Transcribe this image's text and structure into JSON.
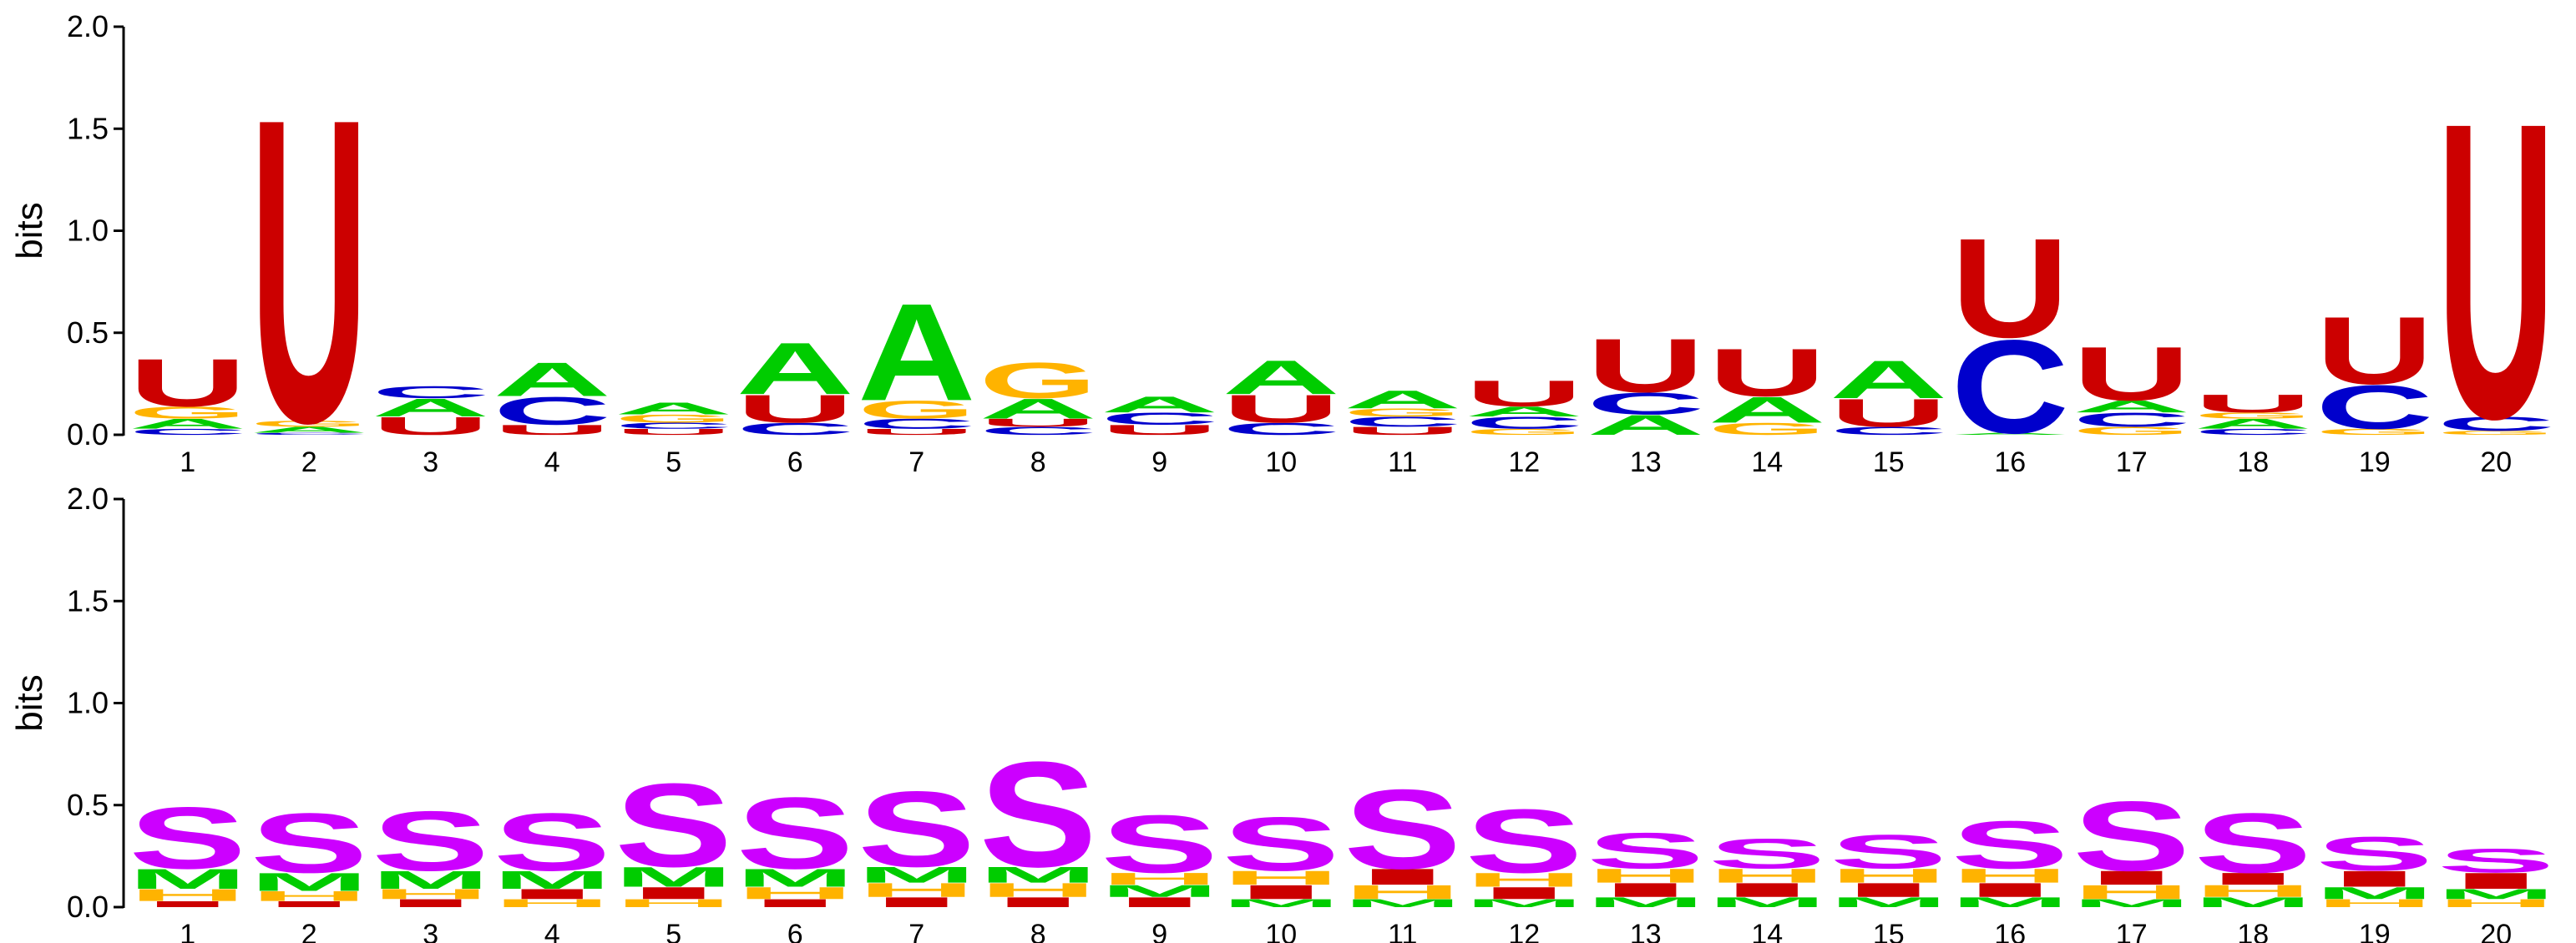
{
  "chart_data": [
    {
      "type": "sequence_logo",
      "ylabel": "bits",
      "ylim": [
        0,
        2
      ],
      "yticks": [
        "0.0",
        "0.5",
        "1.0",
        "1.5",
        "2.0"
      ],
      "positions": [
        "1",
        "2",
        "3",
        "4",
        "5",
        "6",
        "7",
        "8",
        "9",
        "10",
        "11",
        "12",
        "13",
        "14",
        "15",
        "16",
        "17",
        "18",
        "19",
        "20"
      ],
      "colors": {
        "A": "#00cc00",
        "C": "#0000cc",
        "G": "#ffb300",
        "U": "#cc0000"
      },
      "stacks": [
        [
          {
            "l": "C",
            "h": 0.03
          },
          {
            "l": "A",
            "h": 0.05
          },
          {
            "l": "G",
            "h": 0.06
          },
          {
            "l": "U",
            "h": 0.24
          }
        ],
        [
          {
            "l": "C",
            "h": 0.01
          },
          {
            "l": "A",
            "h": 0.03
          },
          {
            "l": "G",
            "h": 0.03
          },
          {
            "l": "U",
            "h": 1.53
          }
        ],
        [
          {
            "l": "U",
            "h": 0.09
          },
          {
            "l": "A",
            "h": 0.09
          },
          {
            "l": "C",
            "h": 0.06
          }
        ],
        [
          {
            "l": "U",
            "h": 0.05
          },
          {
            "l": "C",
            "h": 0.14
          },
          {
            "l": "A",
            "h": 0.17
          }
        ],
        [
          {
            "l": "U",
            "h": 0.03
          },
          {
            "l": "C",
            "h": 0.03
          },
          {
            "l": "G",
            "h": 0.04
          },
          {
            "l": "A",
            "h": 0.06
          }
        ],
        [
          {
            "l": "C",
            "h": 0.06
          },
          {
            "l": "U",
            "h": 0.14
          },
          {
            "l": "A",
            "h": 0.26
          }
        ],
        [
          {
            "l": "U",
            "h": 0.03
          },
          {
            "l": "C",
            "h": 0.05
          },
          {
            "l": "G",
            "h": 0.09
          },
          {
            "l": "A",
            "h": 0.49
          }
        ],
        [
          {
            "l": "C",
            "h": 0.04
          },
          {
            "l": "U",
            "h": 0.04
          },
          {
            "l": "A",
            "h": 0.1
          },
          {
            "l": "G",
            "h": 0.18
          }
        ],
        [
          {
            "l": "U",
            "h": 0.05
          },
          {
            "l": "C",
            "h": 0.06
          },
          {
            "l": "A",
            "h": 0.08
          }
        ],
        [
          {
            "l": "C",
            "h": 0.06
          },
          {
            "l": "U",
            "h": 0.14
          },
          {
            "l": "A",
            "h": 0.17
          }
        ],
        [
          {
            "l": "U",
            "h": 0.04
          },
          {
            "l": "C",
            "h": 0.05
          },
          {
            "l": "G",
            "h": 0.04
          },
          {
            "l": "A",
            "h": 0.09
          }
        ],
        [
          {
            "l": "G",
            "h": 0.03
          },
          {
            "l": "C",
            "h": 0.06
          },
          {
            "l": "A",
            "h": 0.05
          },
          {
            "l": "U",
            "h": 0.13
          }
        ],
        [
          {
            "l": "A",
            "h": 0.1
          },
          {
            "l": "C",
            "h": 0.11
          },
          {
            "l": "U",
            "h": 0.27
          }
        ],
        [
          {
            "l": "G",
            "h": 0.06
          },
          {
            "l": "A",
            "h": 0.13
          },
          {
            "l": "U",
            "h": 0.24
          }
        ],
        [
          {
            "l": "C",
            "h": 0.04
          },
          {
            "l": "U",
            "h": 0.14
          },
          {
            "l": "A",
            "h": 0.19
          }
        ],
        [
          {
            "l": "A",
            "h": 0.01
          },
          {
            "l": "C",
            "h": 0.47
          },
          {
            "l": "U",
            "h": 0.5
          }
        ],
        [
          {
            "l": "G",
            "h": 0.04
          },
          {
            "l": "C",
            "h": 0.07
          },
          {
            "l": "A",
            "h": 0.06
          },
          {
            "l": "U",
            "h": 0.27
          }
        ],
        [
          {
            "l": "C",
            "h": 0.03
          },
          {
            "l": "A",
            "h": 0.05
          },
          {
            "l": "G",
            "h": 0.03
          },
          {
            "l": "U",
            "h": 0.09
          }
        ],
        [
          {
            "l": "G",
            "h": 0.03
          },
          {
            "l": "C",
            "h": 0.22
          },
          {
            "l": "U",
            "h": 0.34
          }
        ],
        [
          {
            "l": "G",
            "h": 0.02
          },
          {
            "l": "C",
            "h": 0.07
          },
          {
            "l": "U",
            "h": 1.49
          }
        ]
      ]
    },
    {
      "type": "sequence_logo",
      "ylabel": "bits",
      "ylim": [
        0,
        2
      ],
      "yticks": [
        "0.0",
        "0.5",
        "1.0",
        "1.5",
        "2.0"
      ],
      "positions": [
        "1",
        "2",
        "3",
        "4",
        "5",
        "6",
        "7",
        "8",
        "9",
        "10",
        "11",
        "12",
        "13",
        "14",
        "15",
        "16",
        "17",
        "18",
        "19",
        "20"
      ],
      "colors": {
        "H": "#ffb300",
        "I": "#cc0000",
        "M": "#00cc00",
        "S": "#cc00ff"
      },
      "stacks": [
        [
          {
            "l": "I",
            "h": 0.03
          },
          {
            "l": "H",
            "h": 0.06
          },
          {
            "l": "M",
            "h": 0.1
          },
          {
            "l": "S",
            "h": 0.31
          }
        ],
        [
          {
            "l": "I",
            "h": 0.03
          },
          {
            "l": "H",
            "h": 0.05
          },
          {
            "l": "M",
            "h": 0.09
          },
          {
            "l": "S",
            "h": 0.3
          }
        ],
        [
          {
            "l": "I",
            "h": 0.04
          },
          {
            "l": "H",
            "h": 0.05
          },
          {
            "l": "M",
            "h": 0.09
          },
          {
            "l": "S",
            "h": 0.3
          }
        ],
        [
          {
            "l": "H",
            "h": 0.04
          },
          {
            "l": "I",
            "h": 0.05
          },
          {
            "l": "M",
            "h": 0.09
          },
          {
            "l": "S",
            "h": 0.29
          }
        ],
        [
          {
            "l": "H",
            "h": 0.04
          },
          {
            "l": "I",
            "h": 0.06
          },
          {
            "l": "M",
            "h": 0.1
          },
          {
            "l": "S",
            "h": 0.42
          }
        ],
        [
          {
            "l": "I",
            "h": 0.04
          },
          {
            "l": "H",
            "h": 0.06
          },
          {
            "l": "M",
            "h": 0.09
          },
          {
            "l": "S",
            "h": 0.36
          }
        ],
        [
          {
            "l": "I",
            "h": 0.05
          },
          {
            "l": "H",
            "h": 0.07
          },
          {
            "l": "M",
            "h": 0.08
          },
          {
            "l": "S",
            "h": 0.38
          }
        ],
        [
          {
            "l": "I",
            "h": 0.05
          },
          {
            "l": "H",
            "h": 0.07
          },
          {
            "l": "M",
            "h": 0.08
          },
          {
            "l": "S",
            "h": 0.53
          }
        ],
        [
          {
            "l": "I",
            "h": 0.05
          },
          {
            "l": "M",
            "h": 0.06
          },
          {
            "l": "H",
            "h": 0.06
          },
          {
            "l": "S",
            "h": 0.29
          }
        ],
        [
          {
            "l": "M",
            "h": 0.04
          },
          {
            "l": "I",
            "h": 0.07
          },
          {
            "l": "H",
            "h": 0.07
          },
          {
            "l": "S",
            "h": 0.27
          }
        ],
        [
          {
            "l": "M",
            "h": 0.04
          },
          {
            "l": "H",
            "h": 0.07
          },
          {
            "l": "I",
            "h": 0.08
          },
          {
            "l": "S",
            "h": 0.4
          }
        ],
        [
          {
            "l": "M",
            "h": 0.04
          },
          {
            "l": "I",
            "h": 0.06
          },
          {
            "l": "H",
            "h": 0.07
          },
          {
            "l": "S",
            "h": 0.32
          }
        ],
        [
          {
            "l": "M",
            "h": 0.05
          },
          {
            "l": "I",
            "h": 0.07
          },
          {
            "l": "H",
            "h": 0.07
          },
          {
            "l": "S",
            "h": 0.18
          }
        ],
        [
          {
            "l": "M",
            "h": 0.05
          },
          {
            "l": "I",
            "h": 0.07
          },
          {
            "l": "H",
            "h": 0.07
          },
          {
            "l": "S",
            "h": 0.15
          }
        ],
        [
          {
            "l": "M",
            "h": 0.05
          },
          {
            "l": "I",
            "h": 0.07
          },
          {
            "l": "H",
            "h": 0.07
          },
          {
            "l": "S",
            "h": 0.17
          }
        ],
        [
          {
            "l": "M",
            "h": 0.05
          },
          {
            "l": "I",
            "h": 0.07
          },
          {
            "l": "H",
            "h": 0.07
          },
          {
            "l": "S",
            "h": 0.24
          }
        ],
        [
          {
            "l": "M",
            "h": 0.04
          },
          {
            "l": "H",
            "h": 0.07
          },
          {
            "l": "I",
            "h": 0.07
          },
          {
            "l": "S",
            "h": 0.35
          }
        ],
        [
          {
            "l": "M",
            "h": 0.05
          },
          {
            "l": "H",
            "h": 0.06
          },
          {
            "l": "I",
            "h": 0.06
          },
          {
            "l": "S",
            "h": 0.3
          }
        ],
        [
          {
            "l": "H",
            "h": 0.04
          },
          {
            "l": "M",
            "h": 0.06
          },
          {
            "l": "I",
            "h": 0.08
          },
          {
            "l": "S",
            "h": 0.17
          }
        ],
        [
          {
            "l": "H",
            "h": 0.04
          },
          {
            "l": "M",
            "h": 0.05
          },
          {
            "l": "I",
            "h": 0.08
          },
          {
            "l": "S",
            "h": 0.12
          }
        ]
      ]
    }
  ]
}
